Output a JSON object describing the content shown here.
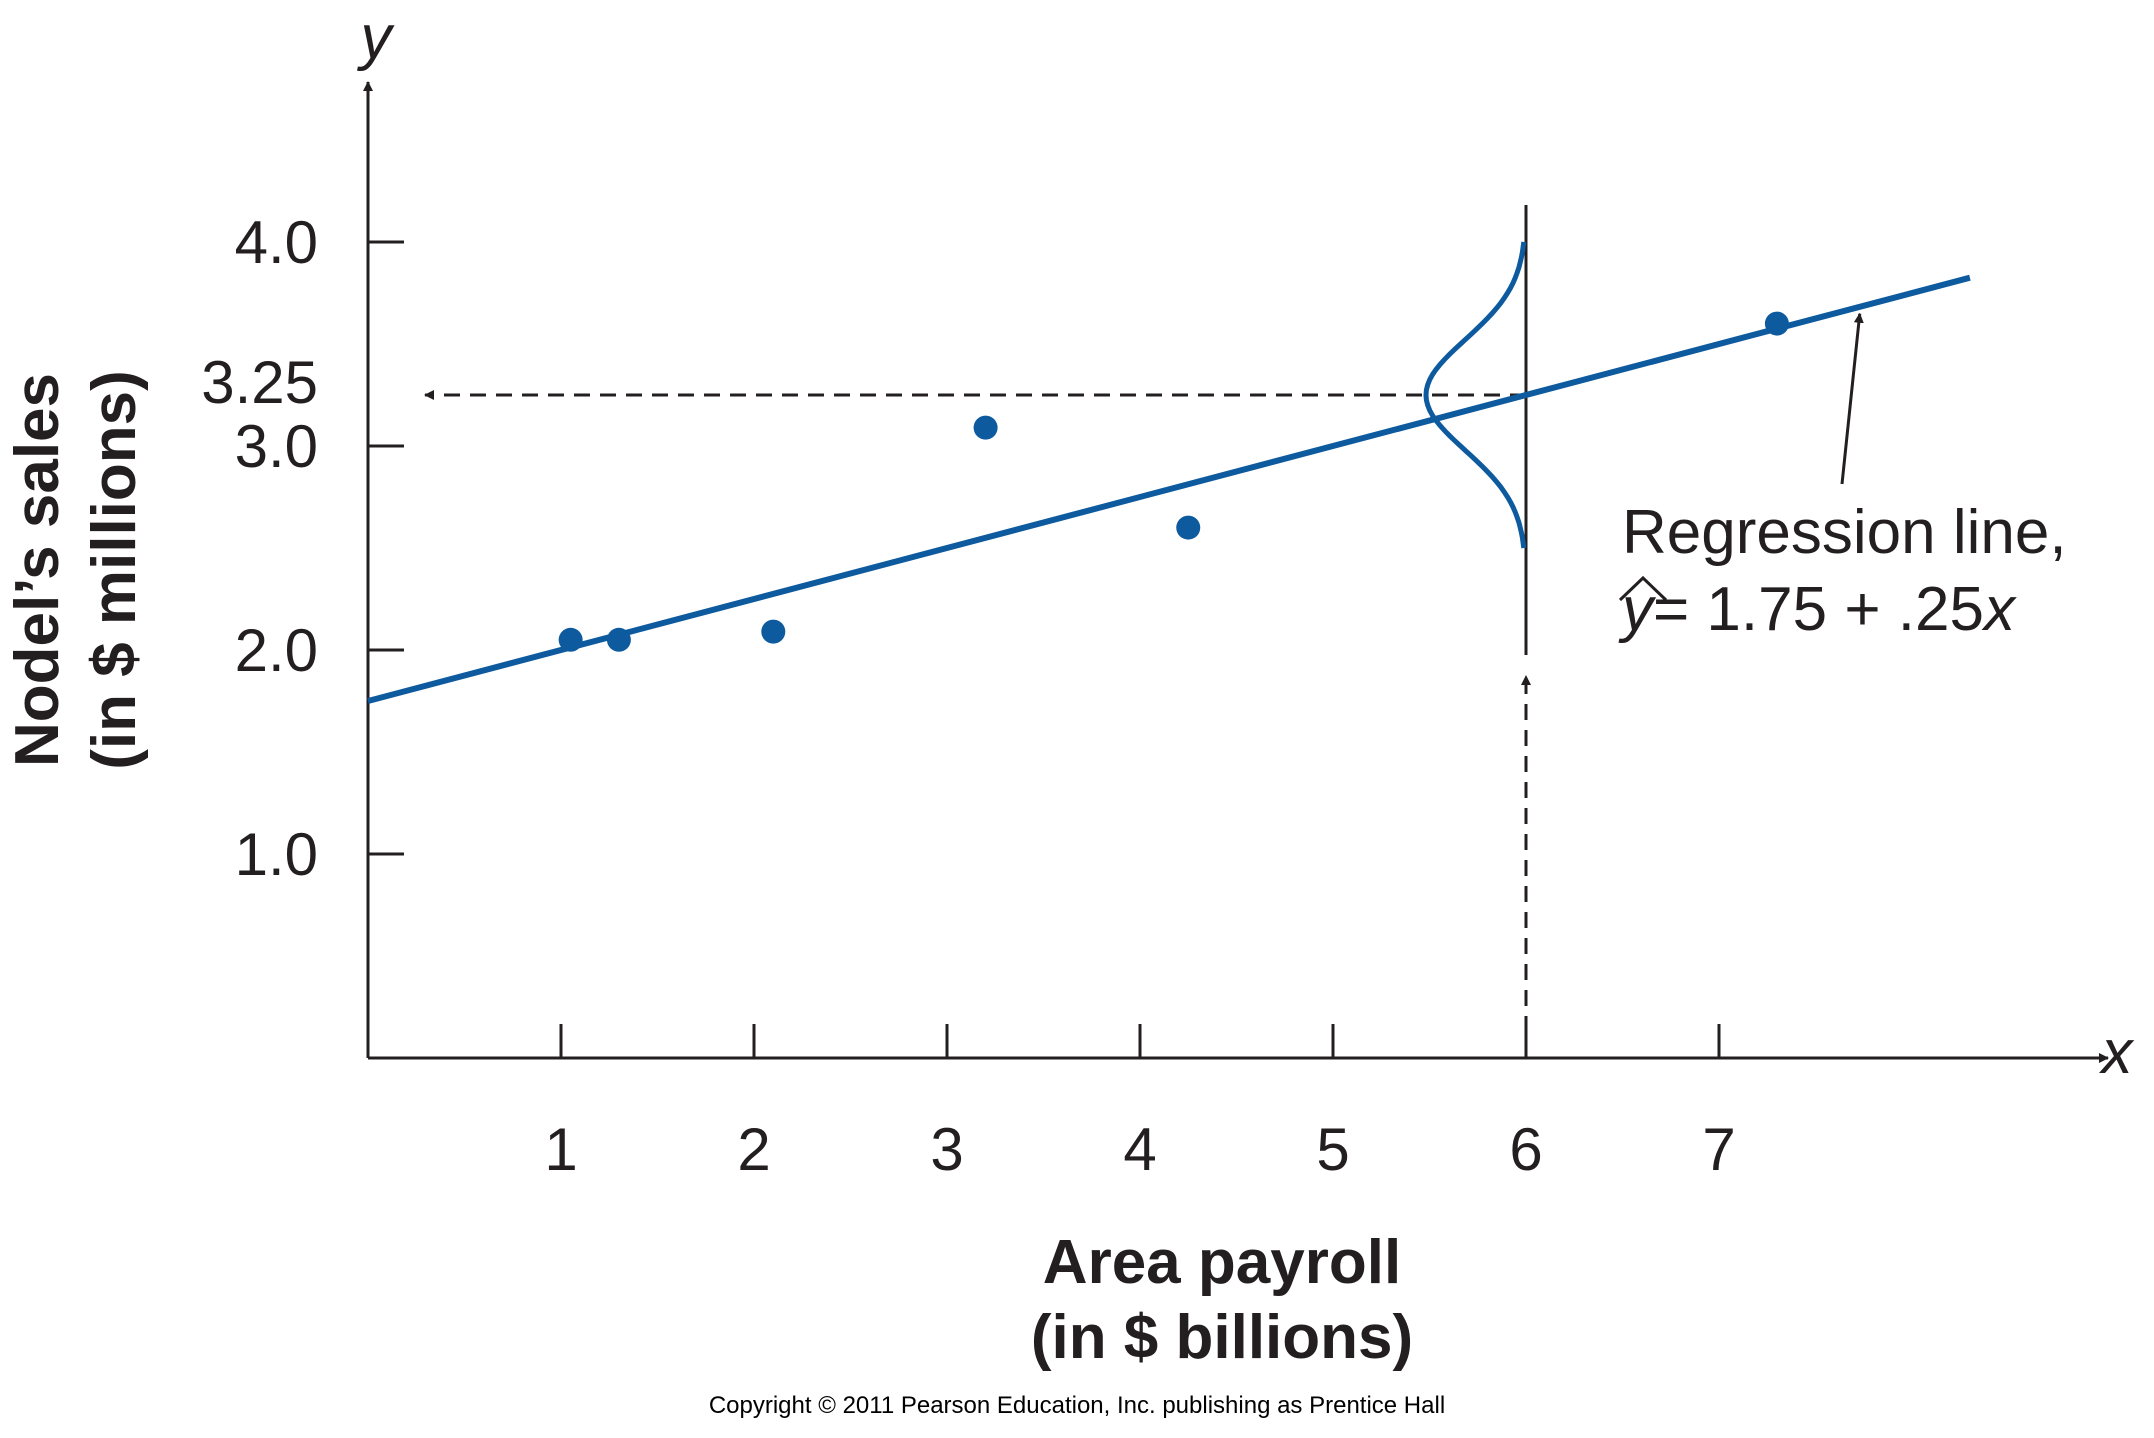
{
  "chart_data": {
    "type": "scatter",
    "axis_letters": {
      "x": "x",
      "y": "y"
    },
    "xlabel_lines": [
      "Area payroll",
      "(in $ billions)"
    ],
    "ylabel_lines": [
      "Nodel’s sales",
      "(in $ millions)"
    ],
    "xlim": [
      0,
      9
    ],
    "ylim": [
      0,
      5.2
    ],
    "x_ticks": [
      1,
      2,
      3,
      4,
      5,
      6,
      7
    ],
    "x_tick_labels": [
      "1",
      "2",
      "3",
      "4",
      "5",
      "6",
      "7"
    ],
    "y_ticks": [
      1,
      2,
      3,
      4
    ],
    "y_tick_labels": [
      "1.0",
      "2.0",
      "3.0",
      "4.0"
    ],
    "y_extra_tick": {
      "value": 3.25,
      "label": "3.25"
    },
    "points": [
      {
        "x": 1.05,
        "y": 2.05
      },
      {
        "x": 1.3,
        "y": 2.05
      },
      {
        "x": 2.1,
        "y": 2.09
      },
      {
        "x": 3.2,
        "y": 3.09
      },
      {
        "x": 4.25,
        "y": 2.6
      },
      {
        "x": 7.3,
        "y": 3.6
      }
    ],
    "regression": {
      "intercept": 1.75,
      "slope": 0.25,
      "x_range": [
        0,
        8.3
      ]
    },
    "prediction": {
      "x": 6,
      "y": 3.25
    },
    "annotation": {
      "line1": "Regression line,",
      "eq_hat": "y",
      "eq_rest": "= 1.75 + .25",
      "eq_var": "x"
    },
    "grid": false,
    "legend": "none",
    "colors": {
      "series": "#0d5a9e",
      "axes": "#231f20"
    }
  },
  "footer": {
    "copyright": "Copyright © 2011 Pearson Education, Inc. publishing as Prentice Hall"
  }
}
